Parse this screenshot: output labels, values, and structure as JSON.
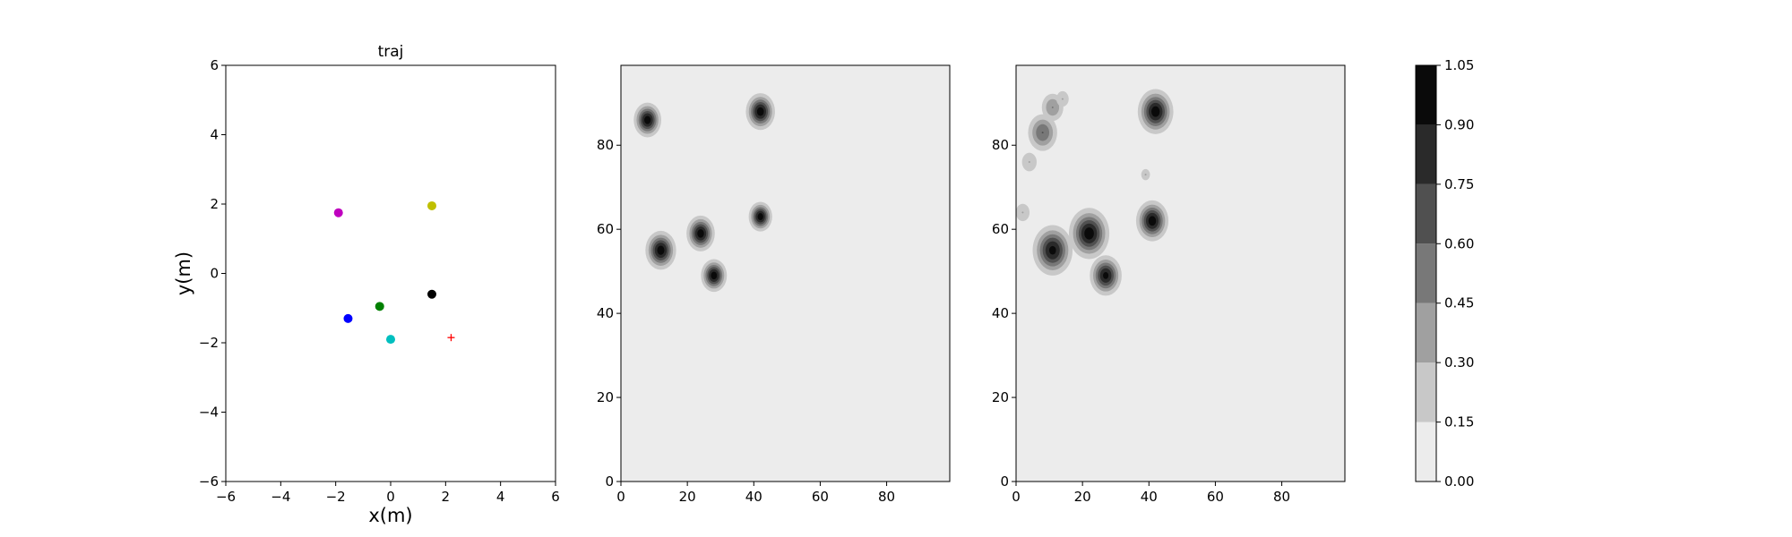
{
  "chart_data": [
    {
      "type": "scatter",
      "title": "traj",
      "xlabel": "x(m)",
      "ylabel": "y(m)",
      "xlim": [
        -6,
        6
      ],
      "ylim": [
        -6,
        6
      ],
      "xticks": [
        -6,
        -4,
        -2,
        0,
        2,
        4,
        6
      ],
      "yticks": [
        -6,
        -4,
        -2,
        0,
        2,
        4,
        6
      ],
      "grid": false,
      "points": [
        {
          "x": -1.9,
          "y": 1.75,
          "color": "#bf00bf",
          "marker": "circle"
        },
        {
          "x": 1.5,
          "y": 1.95,
          "color": "#bfbf00",
          "marker": "circle"
        },
        {
          "x": 1.5,
          "y": -0.6,
          "color": "#000000",
          "marker": "circle"
        },
        {
          "x": -0.4,
          "y": -0.95,
          "color": "#008000",
          "marker": "circle"
        },
        {
          "x": -1.55,
          "y": -1.3,
          "color": "#0000ff",
          "marker": "circle"
        },
        {
          "x": 0.0,
          "y": -1.9,
          "color": "#00bfbf",
          "marker": "circle"
        },
        {
          "x": 2.2,
          "y": -1.85,
          "color": "#ff0000",
          "marker": "plus"
        }
      ]
    },
    {
      "type": "heatmap",
      "title": "",
      "xlim": [
        0,
        99
      ],
      "ylim": [
        0,
        99
      ],
      "xticks": [
        0,
        20,
        40,
        60,
        80
      ],
      "yticks": [
        0,
        20,
        40,
        60,
        80
      ],
      "background_level": 0.0,
      "blobs": [
        {
          "x": 8,
          "y": 86,
          "r": 3.4,
          "peak": 1.0
        },
        {
          "x": 42,
          "y": 88,
          "r": 3.6,
          "peak": 1.0
        },
        {
          "x": 12,
          "y": 55,
          "r": 3.8,
          "peak": 1.0
        },
        {
          "x": 24,
          "y": 59,
          "r": 3.5,
          "peak": 1.0
        },
        {
          "x": 28,
          "y": 49,
          "r": 3.2,
          "peak": 1.0
        },
        {
          "x": 42,
          "y": 63,
          "r": 2.9,
          "peak": 1.0
        }
      ]
    },
    {
      "type": "heatmap",
      "title": "",
      "xlim": [
        0,
        99
      ],
      "ylim": [
        0,
        99
      ],
      "xticks": [
        0,
        20,
        40,
        60,
        80
      ],
      "yticks": [
        0,
        20,
        40,
        60,
        80
      ],
      "background_level": 0.0,
      "blobs": [
        {
          "x": 42,
          "y": 88,
          "r": 4.4,
          "peak": 1.0
        },
        {
          "x": 41,
          "y": 62,
          "r": 4.0,
          "peak": 1.0
        },
        {
          "x": 22,
          "y": 59,
          "r": 5.0,
          "peak": 1.0
        },
        {
          "x": 11,
          "y": 55,
          "r": 5.0,
          "peak": 0.95
        },
        {
          "x": 27,
          "y": 49,
          "r": 4.0,
          "peak": 0.95
        },
        {
          "x": 8,
          "y": 83,
          "r": 4.2,
          "peak": 0.6
        },
        {
          "x": 11,
          "y": 89,
          "r": 3.5,
          "peak": 0.45
        },
        {
          "x": 4,
          "y": 76,
          "r": 3.0,
          "peak": 0.3
        },
        {
          "x": 14,
          "y": 91,
          "r": 2.5,
          "peak": 0.3
        },
        {
          "x": 2,
          "y": 64,
          "r": 2.8,
          "peak": 0.3
        },
        {
          "x": 39,
          "y": 73,
          "r": 1.8,
          "peak": 0.3
        }
      ]
    }
  ],
  "colorbar": {
    "levels": [
      0.0,
      0.15,
      0.3,
      0.45,
      0.6,
      0.75,
      0.9,
      1.05
    ],
    "tick_labels": [
      "0.00",
      "0.15",
      "0.30",
      "0.45",
      "0.60",
      "0.75",
      "0.90",
      "1.05"
    ],
    "colors": [
      "#ececec",
      "#c8c8c8",
      "#a0a0a0",
      "#787878",
      "#505050",
      "#2a2a2a",
      "#0a0a0a"
    ]
  }
}
